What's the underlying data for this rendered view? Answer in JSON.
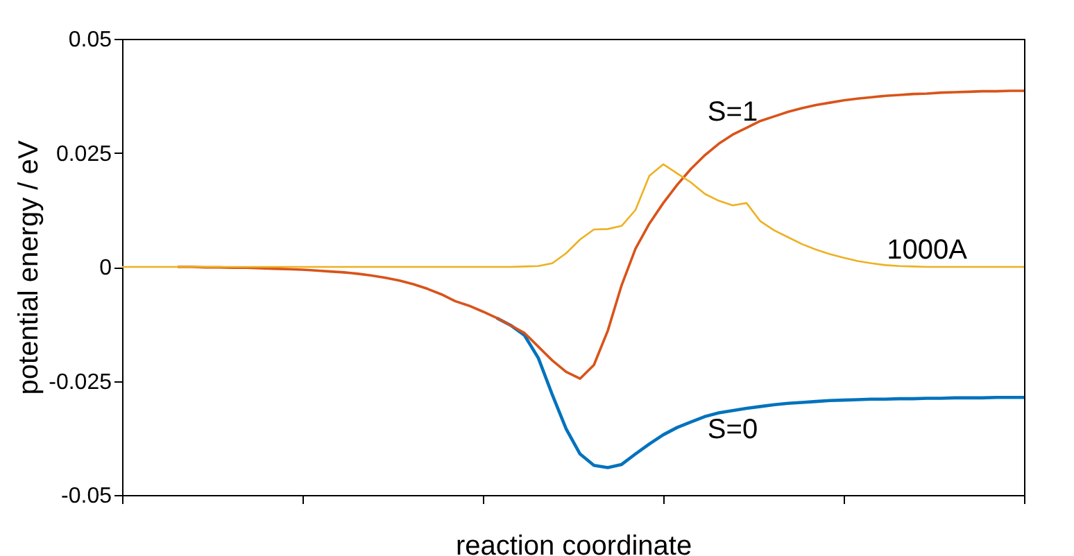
{
  "chart_data": {
    "type": "line",
    "xlabel": "reaction coordinate",
    "ylabel": "potential energy / eV",
    "categories": [
      null,
      null,
      null,
      null,
      null,
      null,
      null,
      null,
      null,
      null,
      null,
      null,
      null,
      null,
      null,
      null,
      null,
      null,
      null,
      null,
      null,
      null,
      null,
      null,
      null,
      null,
      null,
      null,
      null,
      null,
      null,
      null,
      null,
      null,
      null,
      null,
      null,
      null,
      null,
      null,
      null,
      null,
      null,
      null,
      null,
      null,
      null,
      null,
      null,
      null,
      null,
      null,
      null,
      null,
      null,
      null,
      null,
      null,
      null,
      null,
      null,
      null,
      null,
      null,
      null,
      null
    ],
    "series": [
      {
        "name": "S=0",
        "color": "#0072bd",
        "values": [
          null,
          null,
          null,
          null,
          null,
          null,
          null,
          null,
          null,
          null,
          null,
          null,
          null,
          null,
          null,
          null,
          null,
          null,
          null,
          null,
          null,
          null,
          null,
          null,
          null,
          null,
          null,
          -0.0112,
          -0.0128,
          -0.015,
          -0.02,
          -0.028,
          -0.0355,
          -0.041,
          -0.0435,
          -0.044,
          -0.0433,
          -0.041,
          -0.0388,
          -0.0368,
          -0.0352,
          -0.034,
          -0.0328,
          -0.032,
          -0.0315,
          -0.031,
          -0.0306,
          -0.0302,
          -0.0299,
          -0.0297,
          -0.0295,
          -0.0293,
          -0.0292,
          -0.0291,
          -0.029,
          -0.029,
          -0.0289,
          -0.0289,
          -0.0288,
          -0.0288,
          -0.0287,
          -0.0287,
          -0.0287,
          -0.0286,
          -0.0286,
          -0.0286
        ]
      },
      {
        "name": "S=1",
        "color": "#d95319",
        "values": [
          null,
          null,
          null,
          null,
          0,
          0,
          -0.0001,
          -0.0001,
          -0.0002,
          -0.0002,
          -0.0003,
          -0.0004,
          -0.0005,
          -0.0006,
          -0.0008,
          -0.001,
          -0.0012,
          -0.0015,
          -0.0019,
          -0.0024,
          -0.003,
          -0.0038,
          -0.0048,
          -0.006,
          -0.0075,
          -0.0085,
          -0.0098,
          -0.0112,
          -0.0128,
          -0.0145,
          -0.0175,
          -0.0205,
          -0.023,
          -0.0245,
          -0.0215,
          -0.014,
          -0.004,
          0.004,
          0.0095,
          0.014,
          0.018,
          0.0215,
          0.0245,
          0.027,
          0.029,
          0.0305,
          0.032,
          0.033,
          0.034,
          0.0348,
          0.0355,
          0.036,
          0.0365,
          0.0369,
          0.0372,
          0.0375,
          0.0377,
          0.0379,
          0.038,
          0.0382,
          0.0383,
          0.0384,
          0.0385,
          0.0385,
          0.0386,
          0.0386
        ]
      },
      {
        "name": "1000A",
        "color": "#edb120",
        "values": [
          0,
          0,
          0,
          0,
          0,
          0,
          0,
          0,
          0,
          0,
          0,
          0,
          0,
          0,
          0,
          0,
          0,
          0,
          0,
          0,
          0,
          0,
          0,
          0,
          0,
          0,
          0,
          0,
          0,
          0.0001,
          0.0002,
          0.0008,
          0.003,
          0.006,
          0.0082,
          0.0083,
          0.009,
          0.0125,
          0.02,
          0.0225,
          0.0205,
          0.0185,
          0.016,
          0.0145,
          0.0135,
          0.014,
          0.01,
          0.008,
          0.0065,
          0.005,
          0.0038,
          0.0028,
          0.002,
          0.0013,
          0.0008,
          0.0004,
          0.0002,
          0.0001,
          0,
          0,
          0,
          0,
          0,
          0,
          0,
          0
        ]
      }
    ],
    "ylim": [
      -0.05,
      0.05
    ],
    "yticks": [
      -0.05,
      -0.025,
      0,
      0.025,
      0.05
    ],
    "tick_labels": "y",
    "grid": false,
    "line_style": "solid",
    "marker": "none"
  }
}
